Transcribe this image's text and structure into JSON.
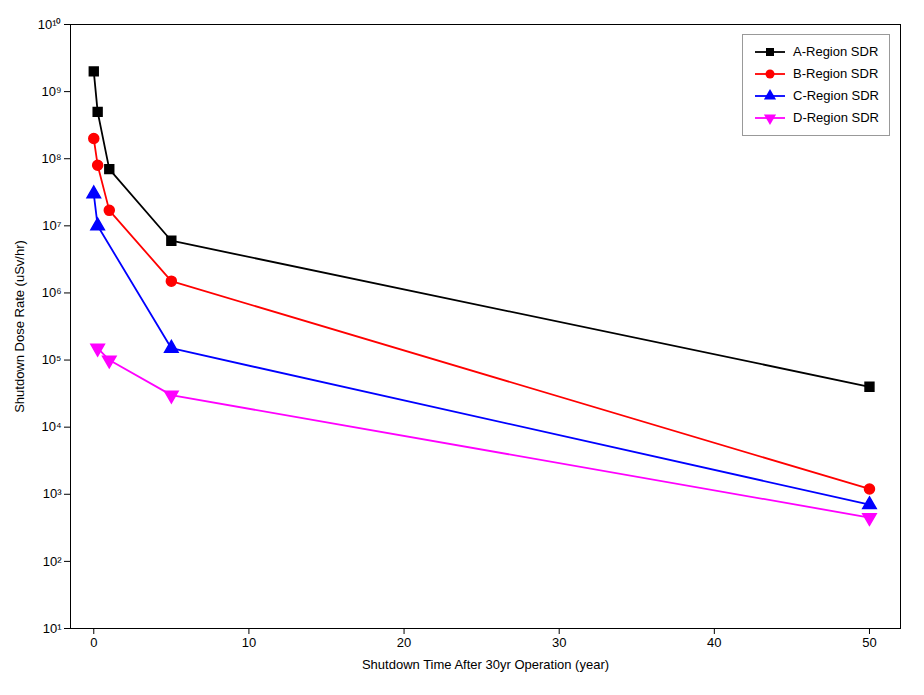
{
  "chart_data": {
    "type": "line",
    "xlabel": "Shutdown Time After 30yr Operation (year)",
    "ylabel": "Shutdown Dose Rate (uSv/hr)",
    "series": [
      {
        "name": "A-Region SDR",
        "color": "#000000",
        "marker": "square",
        "x": [
          0,
          0.25,
          1,
          5,
          50
        ],
        "values": [
          2000000000.0,
          500000000.0,
          70000000.0,
          6000000.0,
          40000.0
        ]
      },
      {
        "name": "B-Region SDR",
        "color": "#ff0000",
        "marker": "circle",
        "x": [
          0,
          0.25,
          1,
          5,
          50
        ],
        "values": [
          200000000.0,
          80000000.0,
          17000000.0,
          1500000.0,
          1200
        ]
      },
      {
        "name": "C-Region SDR",
        "color": "#0000ff",
        "marker": "triangle-up",
        "x": [
          0,
          0.25,
          5,
          50
        ],
        "values": [
          30000000.0,
          10000000.0,
          150000.0,
          700
        ]
      },
      {
        "name": "D-Region SDR",
        "color": "#ff00ff",
        "marker": "triangle-down",
        "x": [
          0.25,
          1,
          5,
          50
        ],
        "values": [
          150000.0,
          100000.0,
          30000.0,
          450
        ]
      }
    ],
    "log": "y",
    "xlim": [
      -1.5,
      52
    ],
    "xticks": [
      0,
      10,
      20,
      30,
      40,
      50
    ],
    "ylim": [
      10,
      10000000000.0
    ],
    "yticks": [
      {
        "value": 10,
        "label": "10¹"
      },
      {
        "value": 100,
        "label": "10²"
      },
      {
        "value": 1000,
        "label": "10³"
      },
      {
        "value": 10000,
        "label": "10⁴"
      },
      {
        "value": 100000,
        "label": "10⁵"
      },
      {
        "value": 1000000,
        "label": "10⁶"
      },
      {
        "value": 10000000,
        "label": "10⁷"
      },
      {
        "value": 100000000,
        "label": "10⁸"
      },
      {
        "value": 1000000000,
        "label": "10⁹"
      },
      {
        "value": 10000000000,
        "label": "10¹⁰"
      }
    ],
    "grid": false,
    "legend": "upper right"
  }
}
